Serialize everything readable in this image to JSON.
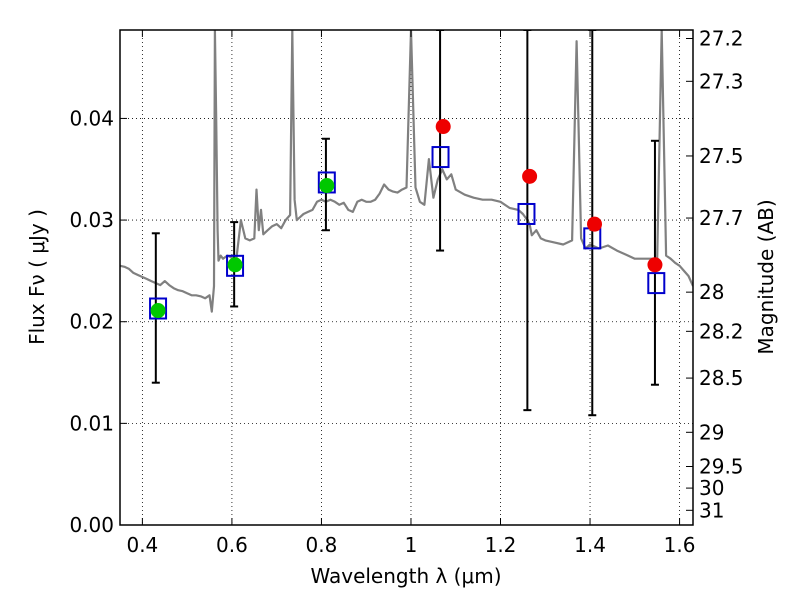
{
  "chart_data": {
    "type": "scatter",
    "xlabel": "Wavelength  λ (μm)",
    "ylabel": "Flux  Fν ( μJy )",
    "ylabel_right": "Magnitude (AB)",
    "xlim": [
      0.35,
      1.63
    ],
    "ylim": [
      0.0,
      0.0487
    ],
    "x_ticks": [
      0.4,
      0.6,
      0.8,
      1.0,
      1.2,
      1.4,
      1.6
    ],
    "x_tick_labels": [
      "0.4",
      "0.6",
      "0.8",
      "1",
      "1.2",
      "1.4",
      "1.6"
    ],
    "y_ticks": [
      0.0,
      0.01,
      0.02,
      0.03,
      0.04
    ],
    "y_tick_labels": [
      "0.00",
      "0.01",
      "0.02",
      "0.03",
      "0.04"
    ],
    "right_ticks": [
      27.2,
      27.3,
      27.5,
      27.7,
      28,
      28.2,
      28.5,
      29,
      29.5,
      30,
      31
    ],
    "right_tick_labels": [
      "27.2",
      "27.3",
      "27.5",
      "27.7",
      "28",
      "28.2",
      "28.5",
      "29",
      "29.5",
      "30",
      "31"
    ],
    "grid": true,
    "series": [
      {
        "marker": "line",
        "color": "#808080",
        "x": [
          0.35,
          0.36,
          0.37,
          0.38,
          0.39,
          0.4,
          0.41,
          0.42,
          0.43,
          0.44,
          0.45,
          0.46,
          0.47,
          0.48,
          0.49,
          0.5,
          0.51,
          0.52,
          0.53,
          0.54,
          0.55,
          0.555,
          0.56,
          0.562,
          0.565,
          0.568,
          0.57,
          0.575,
          0.58,
          0.59,
          0.6,
          0.61,
          0.62,
          0.63,
          0.64,
          0.65,
          0.655,
          0.66,
          0.665,
          0.67,
          0.68,
          0.69,
          0.7,
          0.71,
          0.72,
          0.73,
          0.735,
          0.74,
          0.745,
          0.75,
          0.76,
          0.77,
          0.78,
          0.79,
          0.8,
          0.81,
          0.82,
          0.83,
          0.84,
          0.85,
          0.86,
          0.87,
          0.88,
          0.89,
          0.9,
          0.91,
          0.92,
          0.93,
          0.94,
          0.95,
          0.96,
          0.97,
          0.98,
          0.99,
          1.0,
          1.01,
          1.02,
          1.03,
          1.04,
          1.05,
          1.06,
          1.07,
          1.08,
          1.09,
          1.1,
          1.12,
          1.14,
          1.16,
          1.18,
          1.2,
          1.22,
          1.24,
          1.25,
          1.26,
          1.265,
          1.27,
          1.28,
          1.29,
          1.3,
          1.32,
          1.34,
          1.36,
          1.37,
          1.38,
          1.39,
          1.4,
          1.42,
          1.44,
          1.46,
          1.48,
          1.5,
          1.52,
          1.54,
          1.55,
          1.56,
          1.57,
          1.58,
          1.59,
          1.6,
          1.61,
          1.62,
          1.63
        ],
        "y": [
          0.0255,
          0.0254,
          0.0252,
          0.0248,
          0.0246,
          0.0244,
          0.0242,
          0.024,
          0.0238,
          0.0236,
          0.024,
          0.0236,
          0.0233,
          0.0231,
          0.023,
          0.0228,
          0.0226,
          0.0226,
          0.0225,
          0.0223,
          0.0226,
          0.021,
          0.0235,
          0.0487,
          0.04,
          0.029,
          0.026,
          0.0265,
          0.0262,
          0.0265,
          0.0263,
          0.0262,
          0.03,
          0.0282,
          0.028,
          0.0282,
          0.033,
          0.029,
          0.031,
          0.0286,
          0.029,
          0.0294,
          0.0296,
          0.0292,
          0.03,
          0.0305,
          0.0487,
          0.032,
          0.03,
          0.0302,
          0.0306,
          0.0308,
          0.031,
          0.0318,
          0.032,
          0.0318,
          0.032,
          0.0318,
          0.0315,
          0.0317,
          0.031,
          0.0308,
          0.0318,
          0.032,
          0.0318,
          0.0318,
          0.032,
          0.0326,
          0.0335,
          0.033,
          0.0328,
          0.0327,
          0.033,
          0.0332,
          0.0487,
          0.0332,
          0.0318,
          0.0315,
          0.036,
          0.0322,
          0.034,
          0.035,
          0.034,
          0.0345,
          0.033,
          0.0325,
          0.0322,
          0.032,
          0.032,
          0.0318,
          0.0312,
          0.031,
          0.0306,
          0.03,
          0.0296,
          0.0285,
          0.029,
          0.0282,
          0.028,
          0.0278,
          0.0276,
          0.028,
          0.0476,
          0.0282,
          0.0272,
          0.0276,
          0.0272,
          0.0275,
          0.027,
          0.0266,
          0.0262,
          0.0262,
          0.0262,
          0.0262,
          0.0487,
          0.0265,
          0.0262,
          0.0258,
          0.0255,
          0.025,
          0.0245,
          0.0235
        ]
      },
      {
        "marker": "errorbar",
        "color": "#000000",
        "x": [
          0.43,
          0.605,
          0.81,
          1.065,
          1.26,
          1.405,
          1.545
        ],
        "y_low": [
          0.014,
          0.0215,
          0.029,
          0.027,
          0.0113,
          0.0108,
          0.0138
        ],
        "y_high": [
          0.0287,
          0.0298,
          0.038,
          0.0487,
          0.0487,
          0.0487,
          0.0378
        ]
      },
      {
        "marker": "square-open",
        "color": "#0000cc",
        "x": [
          0.435,
          0.607,
          0.812,
          1.066,
          1.258,
          1.405,
          1.548
        ],
        "y": [
          0.0213,
          0.0255,
          0.0337,
          0.0362,
          0.0306,
          0.0282,
          0.0238
        ]
      },
      {
        "marker": "circle",
        "color": "#00c800",
        "x": [
          0.435,
          0.607,
          0.812
        ],
        "y": [
          0.0211,
          0.0256,
          0.0334
        ]
      },
      {
        "marker": "circle",
        "color": "#ee0000",
        "x": [
          1.072,
          1.265,
          1.41,
          1.545
        ],
        "y": [
          0.0392,
          0.0343,
          0.0296,
          0.0256
        ]
      }
    ]
  }
}
